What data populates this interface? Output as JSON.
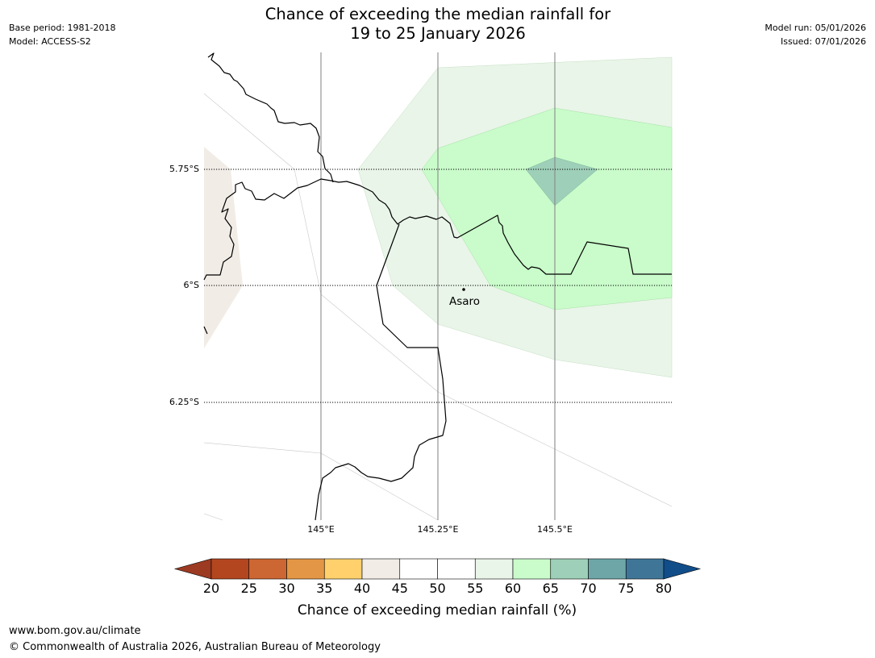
{
  "title": {
    "line1": "Chance of exceeding the median rainfall for",
    "line2": "19 to 25 January 2026"
  },
  "meta_left": {
    "base_period": "Base period: 1981-2018",
    "model": "Model: ACCESS-S2"
  },
  "meta_right": {
    "model_run": "Model run: 05/01/2026",
    "issued": "Issued: 07/01/2026"
  },
  "map": {
    "lat_labels": [
      "5.75°S",
      "6°S",
      "6.25°S"
    ],
    "lon_labels": [
      "145°E",
      "145.25°E",
      "145.5°E"
    ],
    "place": {
      "name": "Asaro"
    }
  },
  "colorbar": {
    "title": "Chance of exceeding median rainfall (%)",
    "ticks": [
      "20",
      "25",
      "30",
      "35",
      "40",
      "45",
      "50",
      "55",
      "60",
      "65",
      "70",
      "75",
      "80"
    ],
    "colors": [
      "#9c3a22",
      "#b3461f",
      "#cc6632",
      "#e39645",
      "#ffd06c",
      "#f1ece6",
      "#ffffff",
      "#ffffff",
      "#e9f5e8",
      "#c9fcca",
      "#9ecfb8",
      "#6ea6a7",
      "#3f7697",
      "#114d89"
    ]
  },
  "footer": {
    "url": "www.bom.gov.au/climate",
    "copyright": "© Commonwealth of Australia 2026, Australian Bureau of Meteorology"
  }
}
